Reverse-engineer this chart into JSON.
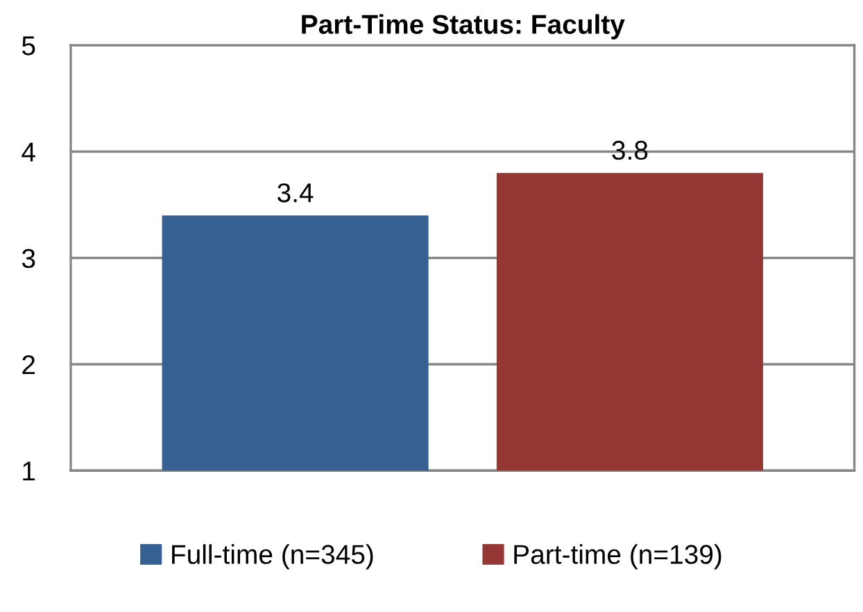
{
  "chart_data": {
    "type": "bar",
    "title": "Part-Time Status: Faculty",
    "categories": [
      null
    ],
    "series": [
      {
        "name": "Full-time (n=345)",
        "color": "#376092",
        "values": [
          3.4
        ]
      },
      {
        "name": "Part-time (n=139)",
        "color": "#953735",
        "values": [
          3.8
        ]
      }
    ],
    "ylim": [
      1,
      5
    ],
    "yticks": [
      1,
      2,
      3,
      4,
      5
    ],
    "grid": "y",
    "legend": "bottom",
    "data_labels": true,
    "tick_labels": "y"
  }
}
